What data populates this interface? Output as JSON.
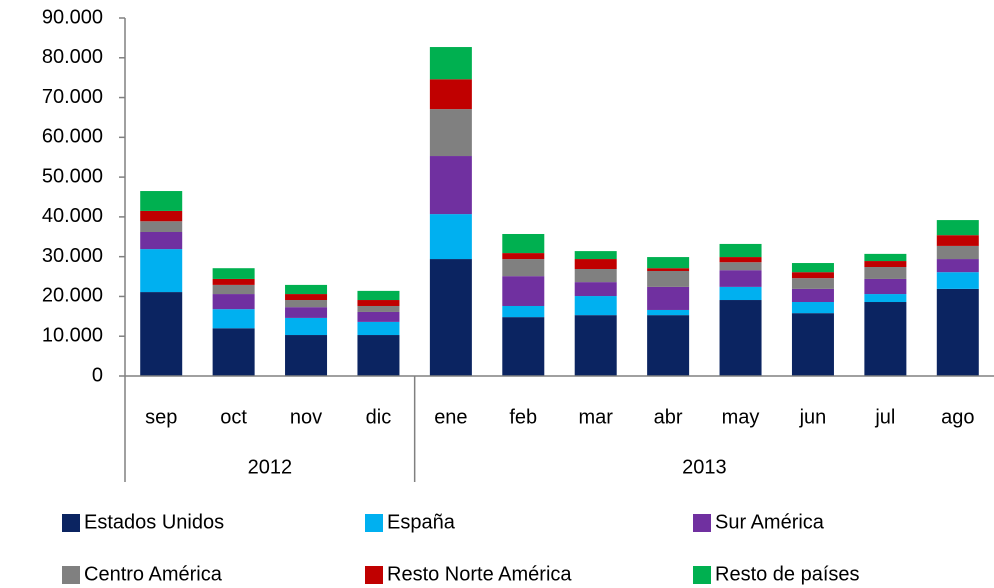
{
  "chart_data": {
    "type": "stacked_bar",
    "categories": [
      "sep",
      "oct",
      "nov",
      "dic",
      "ene",
      "feb",
      "mar",
      "abr",
      "may",
      "jun",
      "jul",
      "ago"
    ],
    "groups": [
      {
        "name": "2012",
        "count": 4
      },
      {
        "name": "2013",
        "count": 8
      }
    ],
    "series": [
      {
        "name": "Estados Unidos",
        "color": "#0b2461",
        "values": [
          21100,
          12000,
          10300,
          10300,
          29400,
          14800,
          15300,
          15300,
          19100,
          15800,
          18600,
          21900
        ]
      },
      {
        "name": "España",
        "color": "#00b0f0",
        "values": [
          10800,
          4800,
          4300,
          3300,
          11300,
          2800,
          4800,
          1300,
          3300,
          2800,
          2000,
          4200
        ]
      },
      {
        "name": "Sur América",
        "color": "#7030a0",
        "values": [
          4300,
          3800,
          2700,
          2500,
          14600,
          7500,
          3500,
          5800,
          4200,
          3300,
          3800,
          3300
        ]
      },
      {
        "name": "Centro América",
        "color": "#808080",
        "values": [
          2700,
          2300,
          1800,
          1500,
          11800,
          4300,
          3300,
          4000,
          2000,
          2700,
          3000,
          3300
        ]
      },
      {
        "name": "Resto Norte América",
        "color": "#c00000",
        "values": [
          2600,
          1500,
          1500,
          1500,
          7500,
          1500,
          2500,
          700,
          1300,
          1500,
          1500,
          2700
        ]
      },
      {
        "name": "Resto de países",
        "color": "#00b050",
        "values": [
          5000,
          2700,
          2300,
          2300,
          8100,
          4800,
          2000,
          2800,
          3300,
          2300,
          1800,
          3800
        ]
      }
    ],
    "ylim": [
      0,
      90000
    ],
    "yticks": [
      0,
      {
        "value": 10000,
        "label": "10.000"
      },
      {
        "value": 20000,
        "label": "20.000"
      },
      {
        "value": 30000,
        "label": "30.000"
      },
      {
        "value": 40000,
        "label": "40.000"
      },
      {
        "value": 50000,
        "label": "50.000"
      },
      {
        "value": 60000,
        "label": "60.000"
      },
      {
        "value": 70000,
        "label": "70.000"
      },
      {
        "value": 80000,
        "label": "80.000"
      },
      {
        "value": 90000,
        "label": "90.000"
      }
    ],
    "legend": "bottom"
  }
}
